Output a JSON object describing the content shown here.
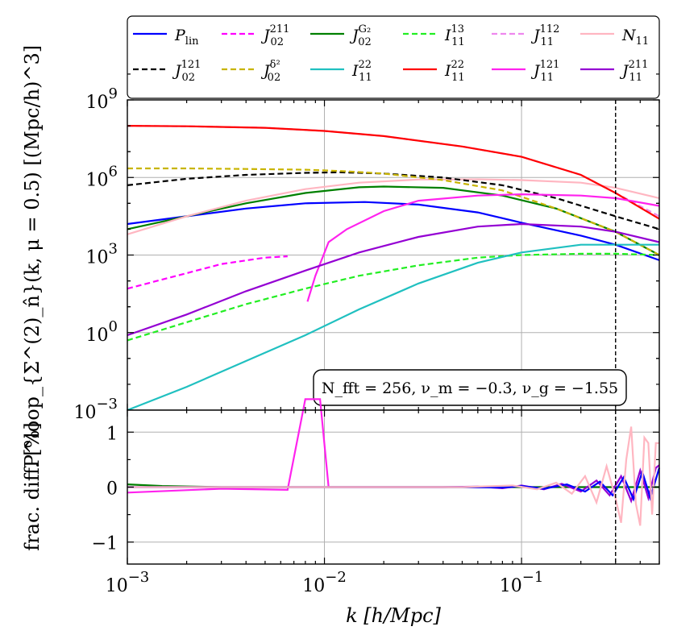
{
  "chart_data": [
    {
      "panel": "top",
      "type": "line",
      "xscale": "log",
      "yscale": "log",
      "xlim": [
        0.001,
        0.5
      ],
      "ylim_exponent": [
        -3,
        9
      ],
      "ylabel": "P^loop_{Σ^(2)_n̂}(k, μ = 0.5) [(Mpc/h)^3]",
      "y_ticks": [
        {
          "exp": -3,
          "label": "10",
          "sup": "−3"
        },
        {
          "exp": 0,
          "label": "10",
          "sup": "0"
        },
        {
          "exp": 3,
          "label": "10",
          "sup": "3"
        },
        {
          "exp": 6,
          "label": "10",
          "sup": "6"
        },
        {
          "exp": 9,
          "label": "10",
          "sup": "9"
        }
      ],
      "vline_k": 0.3,
      "annotation": "N_fft = 256,  ν_m = −0.3,  ν_g = −1.55",
      "series": [
        {
          "name": "P_lin",
          "legend": "P",
          "sub": "lin",
          "sup": "",
          "color": "#0000ff",
          "dash": "solid",
          "x": [
            0.001,
            0.002,
            0.004,
            0.008,
            0.016,
            0.03,
            0.06,
            0.1,
            0.2,
            0.3,
            0.5
          ],
          "log10y": [
            4.2,
            4.5,
            4.8,
            5.0,
            5.05,
            4.95,
            4.65,
            4.25,
            3.75,
            3.4,
            2.8
          ]
        },
        {
          "name": "J_02^211",
          "legend": "J",
          "sub": "02",
          "sup": "211",
          "color": "#ff00ff",
          "dash": "dashed",
          "x": [
            0.001,
            0.002,
            0.003,
            0.005,
            0.0065
          ],
          "log10y": [
            1.7,
            2.3,
            2.65,
            2.9,
            2.95
          ]
        },
        {
          "name": "J_02^G2",
          "legend": "J",
          "sub": "02",
          "sup": "G₂",
          "color": "#008000",
          "dash": "solid",
          "x": [
            0.001,
            0.002,
            0.004,
            0.008,
            0.015,
            0.02,
            0.04,
            0.08,
            0.15,
            0.3,
            0.5
          ],
          "log10y": [
            4.0,
            4.5,
            5.0,
            5.4,
            5.62,
            5.65,
            5.6,
            5.3,
            4.8,
            3.9,
            3.0
          ]
        },
        {
          "name": "I_11^13",
          "legend": "I",
          "sub": "11",
          "sup": "13",
          "color": "#22ee22",
          "dash": "dashed",
          "x": [
            0.001,
            0.002,
            0.004,
            0.008,
            0.015,
            0.03,
            0.06,
            0.1,
            0.2,
            0.3,
            0.5
          ],
          "log10y": [
            -0.3,
            0.4,
            1.1,
            1.7,
            2.2,
            2.6,
            2.9,
            3.0,
            3.05,
            3.05,
            3.0
          ]
        },
        {
          "name": "J_11^112",
          "legend": "J",
          "sub": "11",
          "sup": "112",
          "color": "#ee88ee",
          "dash": "dashed",
          "x": [
            0.001,
            0.002,
            0.005,
            0.01,
            0.02,
            0.05,
            0.1,
            0.2,
            0.3,
            0.5
          ],
          "log10y": [
            8.0,
            7.98,
            7.92,
            7.8,
            7.6,
            7.2,
            6.8,
            6.1,
            5.4,
            4.5
          ]
        },
        {
          "name": "N_11",
          "legend": "N",
          "sub": "11",
          "sup": "",
          "color": "#ffb6c1",
          "dash": "solid",
          "x": [
            0.001,
            0.002,
            0.004,
            0.008,
            0.015,
            0.03,
            0.06,
            0.1,
            0.2,
            0.3,
            0.5
          ],
          "log10y": [
            3.8,
            4.5,
            5.1,
            5.55,
            5.8,
            5.92,
            5.93,
            5.9,
            5.8,
            5.6,
            5.2
          ]
        },
        {
          "name": "J_02^121",
          "legend": "J",
          "sub": "02",
          "sup": "121",
          "color": "#000000",
          "dash": "dashed",
          "x": [
            0.001,
            0.002,
            0.004,
            0.008,
            0.012,
            0.02,
            0.04,
            0.08,
            0.15,
            0.3,
            0.5
          ],
          "log10y": [
            5.7,
            5.95,
            6.1,
            6.18,
            6.2,
            6.15,
            6.0,
            5.7,
            5.2,
            4.5,
            4.0
          ]
        },
        {
          "name": "J_02^δ2",
          "legend": "J",
          "sub": "02",
          "sup": "δ²",
          "color": "#c8b400",
          "dash": "dashed",
          "x": [
            0.001,
            0.002,
            0.004,
            0.008,
            0.012,
            0.02,
            0.04,
            0.08,
            0.15,
            0.3,
            0.5
          ],
          "log10y": [
            6.35,
            6.35,
            6.33,
            6.3,
            6.25,
            6.15,
            5.9,
            5.5,
            4.8,
            3.9,
            3.0
          ]
        },
        {
          "name": "I_22_11",
          "legend": "I",
          "sub": "11",
          "sup": "22",
          "color": "#20c0c0",
          "dash": "solid",
          "x": [
            0.001,
            0.002,
            0.004,
            0.008,
            0.015,
            0.03,
            0.06,
            0.1,
            0.2,
            0.3,
            0.5
          ],
          "log10y": [
            -3.0,
            -2.1,
            -1.1,
            -0.1,
            0.9,
            1.9,
            2.7,
            3.1,
            3.4,
            3.4,
            3.4
          ]
        },
        {
          "name": "I_11^22",
          "legend": "I",
          "sub": "11",
          "sup": "22",
          "color": "#ff0000",
          "dash": "solid",
          "x": [
            0.001,
            0.002,
            0.005,
            0.01,
            0.02,
            0.05,
            0.1,
            0.2,
            0.3,
            0.5
          ],
          "log10y": [
            8.0,
            7.98,
            7.92,
            7.8,
            7.6,
            7.2,
            6.8,
            6.1,
            5.4,
            4.4
          ]
        },
        {
          "name": "J_11^121",
          "legend": "J",
          "sub": "11",
          "sup": "121",
          "color": "#ff22ee",
          "dash": "solid",
          "x": [
            0.0082,
            0.009,
            0.0105,
            0.013,
            0.02,
            0.03,
            0.06,
            0.1,
            0.2,
            0.3,
            0.5
          ],
          "log10y": [
            1.2,
            2.2,
            3.5,
            4.0,
            4.7,
            5.1,
            5.3,
            5.35,
            5.3,
            5.2,
            4.9
          ]
        },
        {
          "name": "J_11^211",
          "legend": "J",
          "sub": "11",
          "sup": "211",
          "color": "#9400d3",
          "dash": "solid",
          "x": [
            0.001,
            0.002,
            0.004,
            0.008,
            0.015,
            0.03,
            0.06,
            0.1,
            0.2,
            0.3,
            0.5
          ],
          "log10y": [
            -0.1,
            0.7,
            1.6,
            2.4,
            3.1,
            3.7,
            4.1,
            4.2,
            4.1,
            3.9,
            3.5
          ]
        }
      ]
    },
    {
      "panel": "bottom",
      "type": "line",
      "xscale": "log",
      "yscale": "linear",
      "xlim": [
        0.001,
        0.5
      ],
      "ylim": [
        -1.4,
        1.4
      ],
      "ylabel": "frac. diff. [%]",
      "y_ticks": [
        {
          "value": -1,
          "label": "−1"
        },
        {
          "value": 0,
          "label": "0"
        },
        {
          "value": 1,
          "label": "1"
        }
      ],
      "xlabel": "k [h/Mpc]",
      "x_ticks": [
        {
          "value": 0.001,
          "label": "10",
          "sup": "−3"
        },
        {
          "value": 0.01,
          "label": "10",
          "sup": "−2"
        },
        {
          "value": 0.1,
          "label": "10",
          "sup": "−1"
        }
      ],
      "vline_k": 0.3,
      "series": [
        {
          "name": "J_11^121 diff",
          "color": "#ff22ee",
          "x": [
            0.001,
            0.003,
            0.0065,
            0.008,
            0.0085,
            0.0095,
            0.0105,
            0.02,
            0.1,
            0.3
          ],
          "y": [
            -0.1,
            -0.03,
            -0.05,
            1.6,
            1.6,
            1.6,
            0.0,
            0.0,
            0.0,
            0.0
          ]
        },
        {
          "name": "J_02^G2 diff",
          "color": "#008000",
          "x": [
            0.001,
            0.0015,
            0.003,
            0.01,
            0.1,
            0.5
          ],
          "y": [
            0.05,
            0.02,
            0.0,
            0.0,
            0.0,
            0.0
          ]
        },
        {
          "name": "J_11^211 diff",
          "color": "#9400d3",
          "x": [
            0.001,
            0.04,
            0.06,
            0.08,
            0.1,
            0.13,
            0.16,
            0.2,
            0.24,
            0.28,
            0.32,
            0.36,
            0.4,
            0.44,
            0.48,
            0.5
          ],
          "y": [
            0.0,
            0.0,
            0.01,
            -0.02,
            0.03,
            -0.04,
            0.06,
            -0.08,
            0.12,
            -0.15,
            0.2,
            -0.25,
            0.3,
            -0.2,
            0.35,
            0.4
          ]
        },
        {
          "name": "P_lin diff",
          "color": "#0000ff",
          "x": [
            0.001,
            0.05,
            0.08,
            0.1,
            0.13,
            0.17,
            0.21,
            0.25,
            0.29,
            0.33,
            0.37,
            0.41,
            0.45,
            0.5
          ],
          "y": [
            0.0,
            0.0,
            -0.01,
            0.02,
            -0.03,
            0.05,
            -0.08,
            0.1,
            -0.15,
            0.18,
            -0.22,
            0.28,
            -0.2,
            0.35
          ]
        },
        {
          "name": "N_11 diff",
          "color": "#ffb6c1",
          "x": [
            0.001,
            0.05,
            0.09,
            0.12,
            0.15,
            0.18,
            0.21,
            0.24,
            0.27,
            0.3,
            0.32,
            0.34,
            0.36,
            0.38,
            0.4,
            0.42,
            0.44,
            0.46,
            0.48,
            0.5
          ],
          "y": [
            0.0,
            0.0,
            0.03,
            -0.04,
            0.08,
            -0.12,
            0.2,
            -0.28,
            0.38,
            -0.2,
            -0.65,
            0.5,
            1.1,
            -0.3,
            -0.7,
            0.9,
            0.8,
            -0.5,
            0.8,
            0.8
          ]
        }
      ]
    }
  ],
  "legend": {
    "row1": [
      {
        "base": "P",
        "sub": "lin",
        "sup": "",
        "color": "#0000ff",
        "dash": "solid"
      },
      {
        "base": "J",
        "sub": "02",
        "sup": "211",
        "color": "#ff00ff",
        "dash": "dashed"
      },
      {
        "base": "J",
        "sub": "02",
        "sup": "G₂",
        "color": "#008000",
        "dash": "solid"
      },
      {
        "base": "I",
        "sub": "11",
        "sup": "13",
        "color": "#22ee22",
        "dash": "dashed"
      },
      {
        "base": "J",
        "sub": "11",
        "sup": "112",
        "color": "#ee88ee",
        "dash": "dashed"
      },
      {
        "base": "N",
        "sub": "11",
        "sup": "",
        "color": "#ffb6c1",
        "dash": "solid"
      }
    ],
    "row2": [
      {
        "base": "J",
        "sub": "02",
        "sup": "121",
        "color": "#000000",
        "dash": "dashed"
      },
      {
        "base": "J",
        "sub": "02",
        "sup": "δ²",
        "color": "#c8b400",
        "dash": "dashed"
      },
      {
        "base": "I",
        "sub": "11",
        "sup": "22",
        "color": "#20c0c0",
        "dash": "solid"
      },
      {
        "base": "I",
        "sub": "11",
        "sup": "22",
        "color": "#ff0000",
        "dash": "solid"
      },
      {
        "base": "J",
        "sub": "11",
        "sup": "121",
        "color": "#ff22ee",
        "dash": "solid"
      },
      {
        "base": "J",
        "sub": "11",
        "sup": "211",
        "color": "#9400d3",
        "dash": "solid"
      }
    ]
  }
}
